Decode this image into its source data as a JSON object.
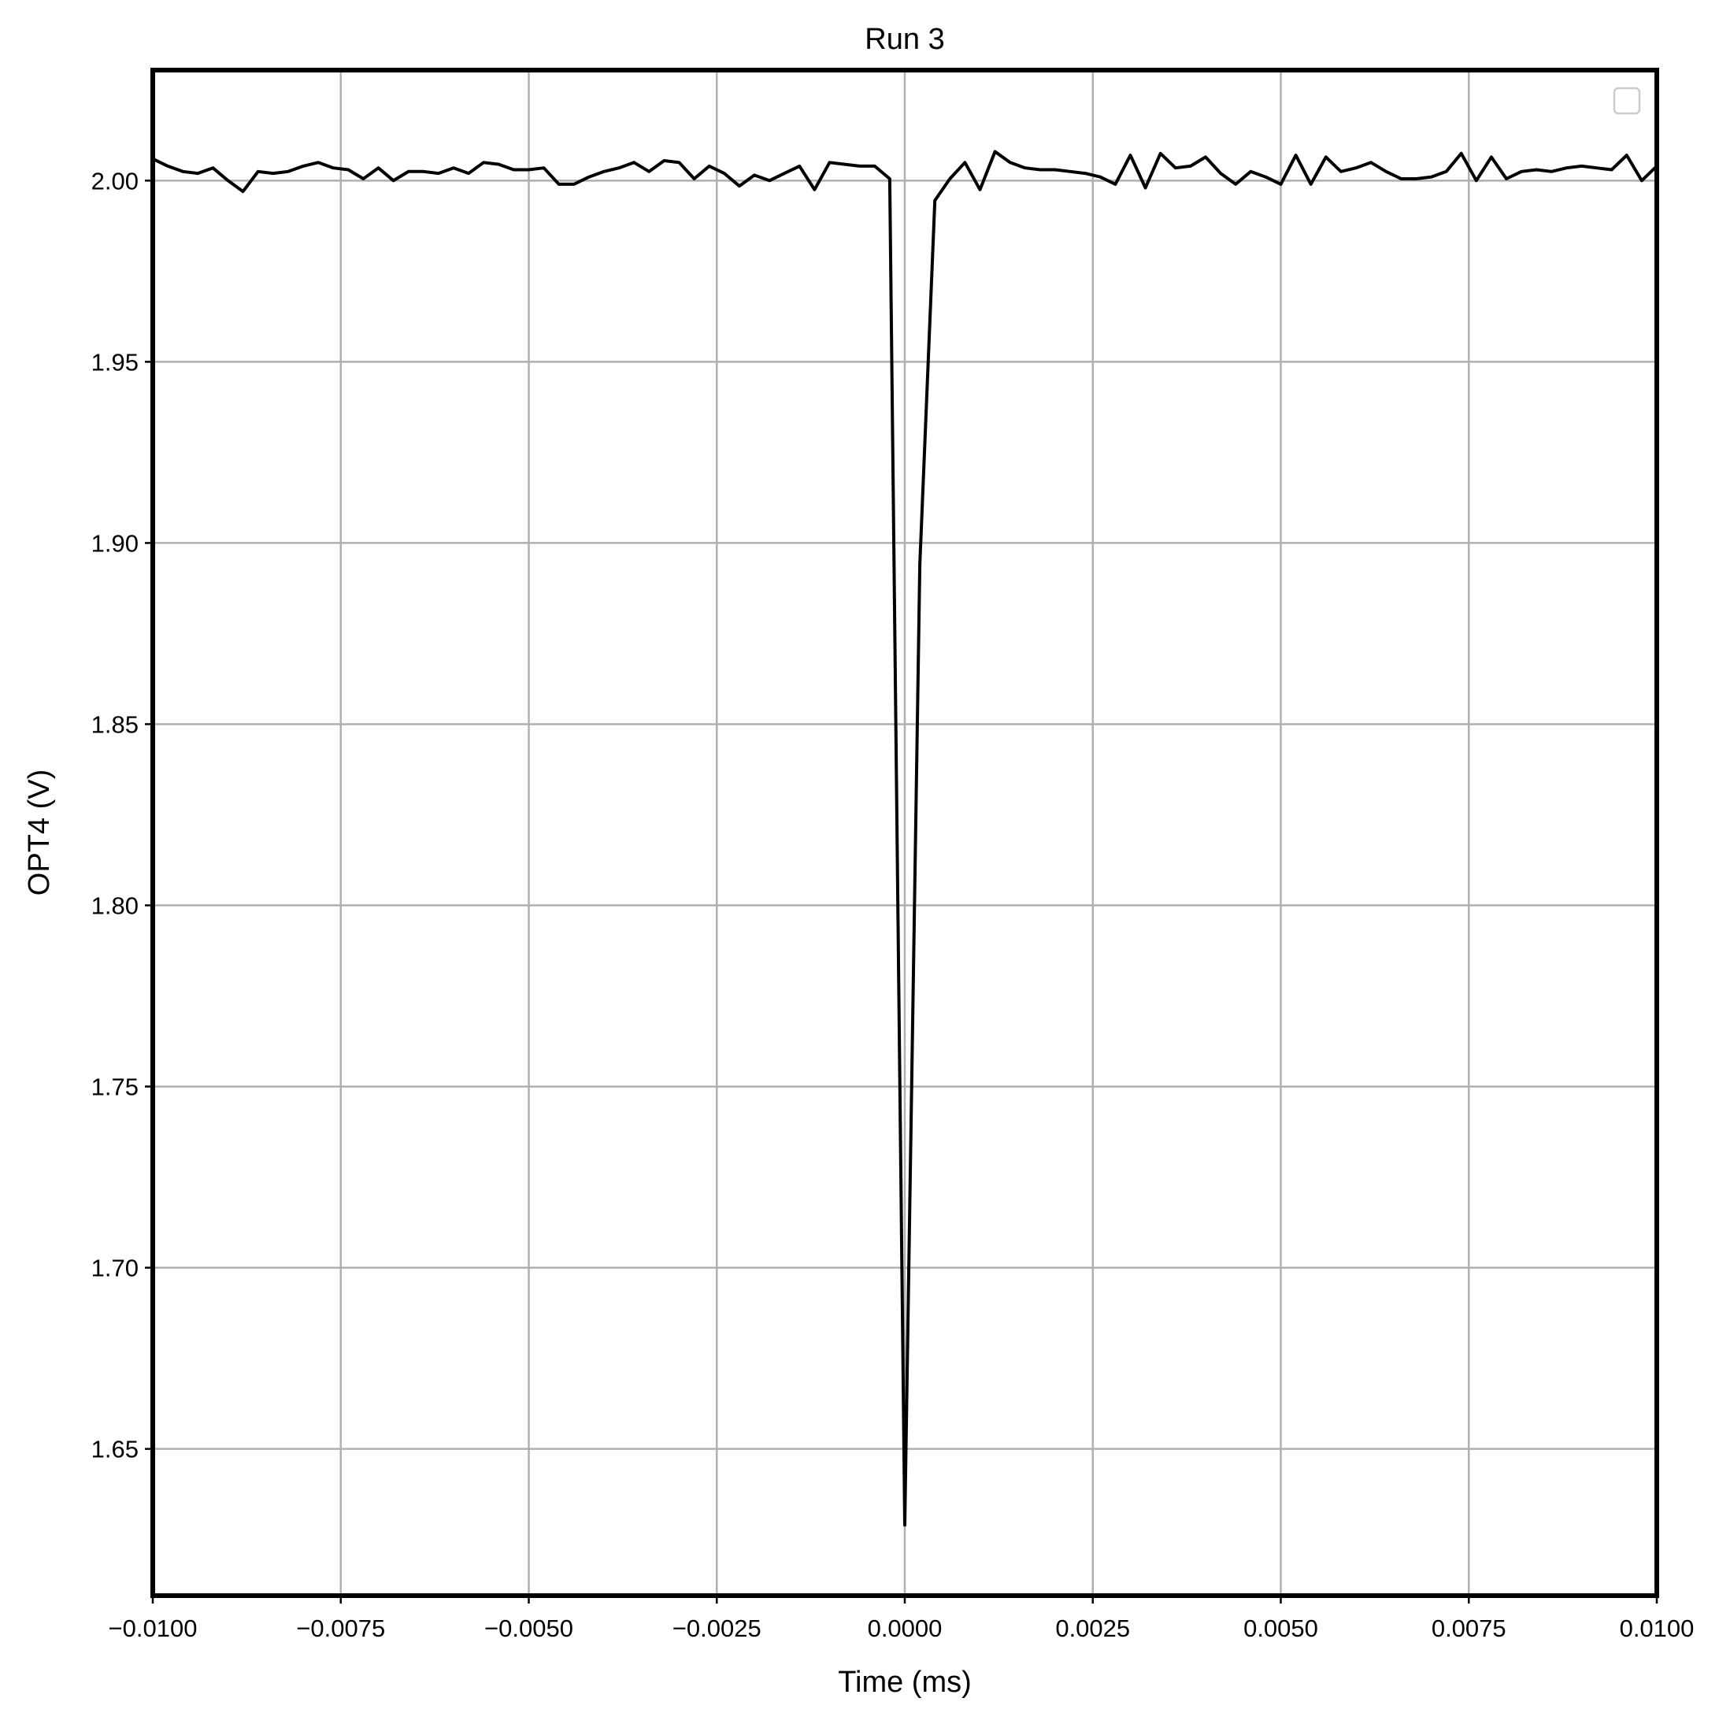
{
  "chart_data": {
    "type": "line",
    "title": "Run 3",
    "xlabel": "Time (ms)",
    "ylabel": "OPT4 (V)",
    "xlim": [
      -0.01,
      0.01
    ],
    "ylim": [
      1.6095,
      2.0305
    ],
    "x_ticks": [
      -0.01,
      -0.0075,
      -0.005,
      -0.0025,
      0.0,
      0.0025,
      0.005,
      0.0075,
      0.01
    ],
    "x_tick_labels": [
      "−0.0100",
      "−0.0075",
      "−0.0050",
      "−0.0025",
      "0.0000",
      "0.0025",
      "0.0050",
      "0.0075",
      "0.0100"
    ],
    "y_ticks": [
      1.65,
      1.7,
      1.75,
      1.8,
      1.85,
      1.9,
      1.95,
      2.0
    ],
    "y_tick_labels": [
      "1.65",
      "1.70",
      "1.75",
      "1.80",
      "1.85",
      "1.90",
      "1.95",
      "2.00"
    ],
    "grid": true,
    "legend": {
      "placement": "top-right",
      "entries": []
    },
    "line_color": "#000000",
    "grid_color": "#b0b0b0",
    "series": [
      {
        "x": [
          -0.01,
          -0.0098,
          -0.0096,
          -0.0094,
          -0.0092,
          -0.009,
          -0.0088,
          -0.0086,
          -0.0084,
          -0.0082,
          -0.008,
          -0.0078,
          -0.0076,
          -0.0074,
          -0.0072,
          -0.007,
          -0.0068,
          -0.0066,
          -0.0064,
          -0.0062,
          -0.006,
          -0.0058,
          -0.0056,
          -0.0054,
          -0.0052,
          -0.005,
          -0.0048,
          -0.0046,
          -0.0044,
          -0.0042,
          -0.004,
          -0.0038,
          -0.0036,
          -0.0034,
          -0.0032,
          -0.003,
          -0.0028,
          -0.0026,
          -0.0024,
          -0.0022,
          -0.002,
          -0.0018,
          -0.0016,
          -0.0014,
          -0.0012,
          -0.001,
          -0.0008,
          -0.0006,
          -0.0004,
          -0.0002,
          0.0,
          0.0002,
          0.0004,
          0.0006,
          0.0008,
          0.001,
          0.0012,
          0.0014,
          0.0016,
          0.0018,
          0.002,
          0.0022,
          0.0024,
          0.0026,
          0.0028,
          0.003,
          0.0032,
          0.0034,
          0.0036,
          0.0038,
          0.004,
          0.0042,
          0.0044,
          0.0046,
          0.0048,
          0.005,
          0.0052,
          0.0054,
          0.0056,
          0.0058,
          0.006,
          0.0062,
          0.0064,
          0.0066,
          0.0068,
          0.007,
          0.0072,
          0.0074,
          0.0076,
          0.0078,
          0.008,
          0.0082,
          0.0084,
          0.0086,
          0.0088,
          0.009,
          0.0092,
          0.0094,
          0.0096,
          0.0098,
          0.01
        ],
        "y": [
          2.006,
          2.004,
          2.0025,
          2.002,
          2.0035,
          2.0,
          1.997,
          2.0025,
          2.002,
          2.0025,
          2.004,
          2.005,
          2.0035,
          2.003,
          2.0005,
          2.0035,
          2.0,
          2.0025,
          2.0025,
          2.002,
          2.0035,
          2.002,
          2.005,
          2.0045,
          2.003,
          2.003,
          2.0035,
          1.999,
          1.999,
          2.001,
          2.0025,
          2.0035,
          2.005,
          2.0025,
          2.0055,
          2.005,
          2.0005,
          2.004,
          2.002,
          1.9985,
          2.0015,
          2.0,
          2.002,
          2.004,
          1.9975,
          2.005,
          2.0045,
          2.004,
          2.004,
          2.0005,
          1.629,
          1.894,
          1.9945,
          2.0005,
          2.005,
          1.9975,
          2.008,
          2.005,
          2.0035,
          2.003,
          2.003,
          2.0025,
          2.002,
          2.001,
          1.999,
          2.007,
          1.998,
          2.0075,
          2.0035,
          2.004,
          2.0065,
          2.002,
          1.999,
          2.0025,
          2.001,
          1.999,
          2.007,
          1.999,
          2.0065,
          2.0025,
          2.0035,
          2.005,
          2.0025,
          2.0005,
          2.0005,
          2.001,
          2.0025,
          2.0075,
          2.0,
          2.0065,
          2.0005,
          2.0025,
          2.003,
          2.0025,
          2.0035,
          2.004,
          2.0035,
          2.003,
          2.007,
          2.0,
          2.004
        ]
      }
    ]
  }
}
